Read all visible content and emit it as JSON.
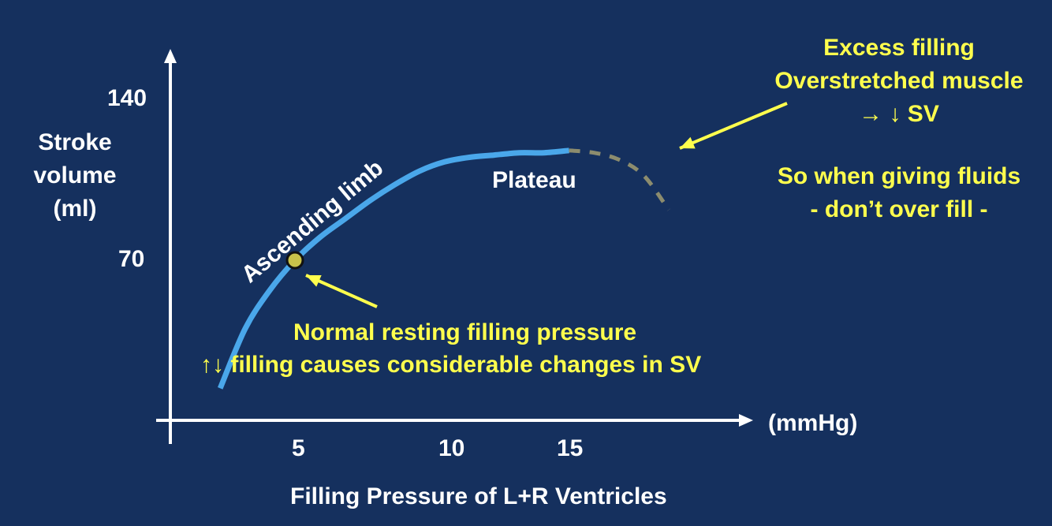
{
  "colors": {
    "background": "#15305e",
    "axis": "#ffffff",
    "curve": "#4aa7ea",
    "curve_dashed": "#8c8c6e",
    "annotation": "#ffff4d",
    "resting_point": "#c8c24a"
  },
  "chart_data": {
    "type": "line",
    "title": "",
    "xlabel": "Filling Pressure of L+R Ventricles",
    "x_unit": "(mmHg)",
    "ylabel": [
      "Stroke",
      "volume",
      "(ml)"
    ],
    "xticks": [
      5,
      10,
      15
    ],
    "yticks": [
      70,
      140
    ],
    "xlim": [
      0,
      24
    ],
    "ylim": [
      0,
      147
    ],
    "grid": false,
    "legend": "none",
    "series": [
      {
        "style": "solid",
        "x": [
          2.0,
          3.0,
          4.0,
          5.0,
          6.0,
          7.0,
          8.0,
          9.0,
          10.0,
          11.0,
          12.0,
          13.0,
          14.0,
          15.0,
          16.0
        ],
        "y": [
          14,
          40,
          57,
          70,
          80,
          88,
          96,
          103,
          109,
          113,
          115,
          116,
          117,
          117,
          118
        ]
      },
      {
        "style": "dashed",
        "x": [
          16.0,
          17.0,
          18.0,
          19.0,
          20.0
        ],
        "y": [
          118,
          117,
          114,
          107,
          92
        ]
      }
    ],
    "points": [
      {
        "label": "Normal resting filling pressure",
        "x": 5.0,
        "y": 70
      }
    ],
    "annotations": {
      "ascending_limb": "Ascending limb",
      "plateau": "Plateau",
      "normal_line1": "Normal resting filling pressure",
      "normal_line2": "↑↓ filling causes considerable changes in SV",
      "excess_line1": "Excess filling",
      "excess_line2": "Overstretched muscle",
      "excess_line3": "→ ↓ SV",
      "fluids_line1": "So when giving fluids",
      "fluids_line2": "- don’t over fill -"
    }
  }
}
